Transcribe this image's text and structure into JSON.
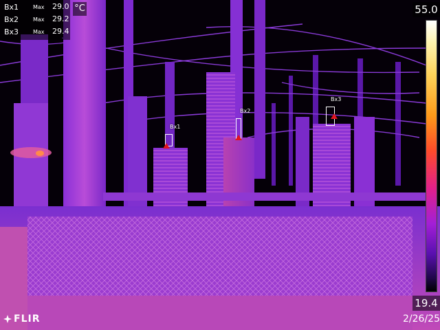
{
  "readout": [
    {
      "label": "Bx1",
      "max_label": "Max",
      "value": "29.0"
    },
    {
      "label": "Bx2",
      "max_label": "Max",
      "value": "29.2"
    },
    {
      "label": "Bx3",
      "max_label": "Max",
      "value": "29.4"
    }
  ],
  "unit": "°C",
  "scale": {
    "max": "55.0",
    "min": "19.4"
  },
  "boxes": [
    "Bx1",
    "Bx2",
    "Bx3"
  ],
  "brand": "FLIR",
  "stamp": "2/26/25",
  "colors": {
    "hot": "#ffd25a",
    "mid": "#a31fd6",
    "cold": "#20064a",
    "spot": "#e0151e"
  },
  "icons": {
    "logo": "flir-flame-icon",
    "spot": "hot-spot-triangle-icon"
  }
}
